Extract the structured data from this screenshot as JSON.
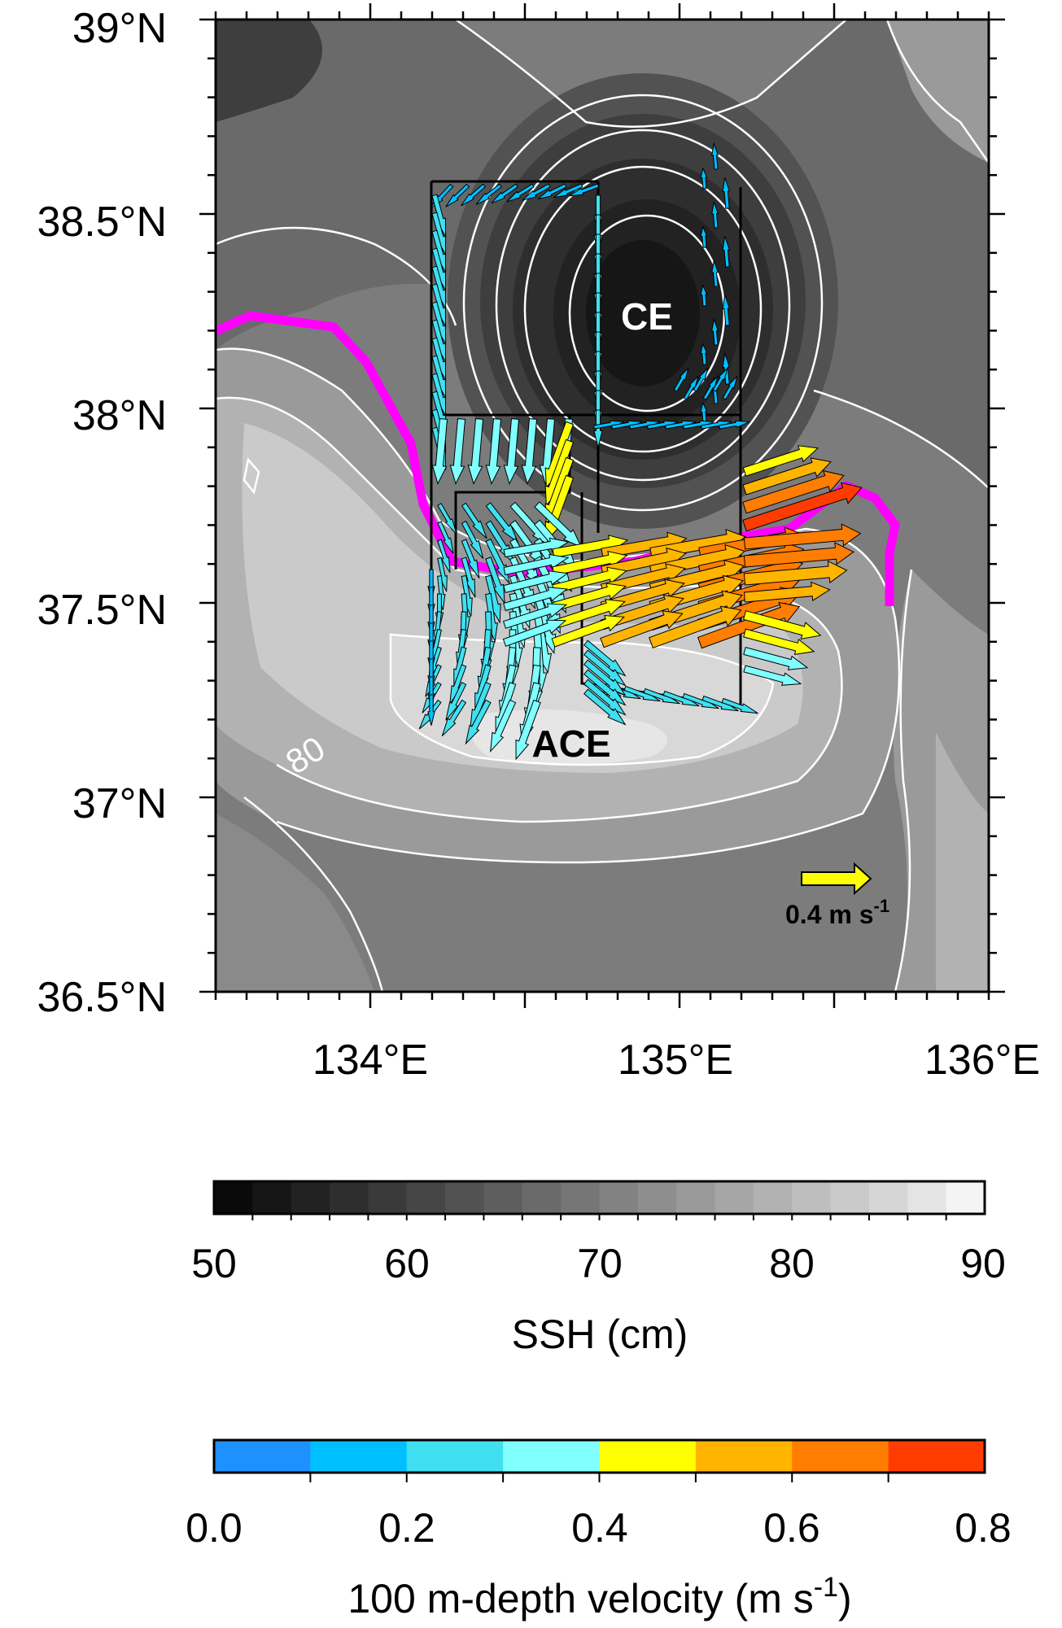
{
  "map": {
    "y_ticks": [
      "39°N",
      "38.5°N",
      "38°N",
      "37.5°N",
      "37°N",
      "36.5°N"
    ],
    "x_ticks": [
      "134°E",
      "135°E",
      "136°E"
    ],
    "contour_label": "80",
    "eddy_labels": {
      "cyclonic": "CE",
      "anticyclonic": "ACE"
    },
    "reference_vector": {
      "label": "0.4 m s",
      "exponent": "-1",
      "speed": 0.4,
      "color": "#ffff00"
    },
    "front_line_color": "#ff00ff",
    "survey_line_color": "#000000"
  },
  "ssh_colorbar": {
    "tick_labels": [
      "50",
      "60",
      "70",
      "80",
      "90"
    ],
    "title": "SSH (cm)",
    "range": [
      50,
      90
    ],
    "colors": [
      "#0a0a0a",
      "#161616",
      "#222222",
      "#2e2e2e",
      "#3a3a3a",
      "#464646",
      "#525252",
      "#5e5e5e",
      "#6a6a6a",
      "#767676",
      "#828282",
      "#8e8e8e",
      "#9a9a9a",
      "#a6a6a6",
      "#b2b2b2",
      "#bebebe",
      "#cacaca",
      "#d6d6d6",
      "#e4e4e4",
      "#f4f4f4"
    ]
  },
  "velocity_colorbar": {
    "tick_labels": [
      "0.0",
      "0.2",
      "0.4",
      "0.6",
      "0.8"
    ],
    "title": "100 m-depth velocity (m s",
    "title_exponent": "-1",
    "title_close": ")",
    "range": [
      0,
      0.8
    ],
    "colors": [
      "#1e90ff",
      "#00bfff",
      "#40e0f0",
      "#80ffff",
      "#ffff00",
      "#ffb400",
      "#ff7d00",
      "#ff3c00"
    ]
  }
}
